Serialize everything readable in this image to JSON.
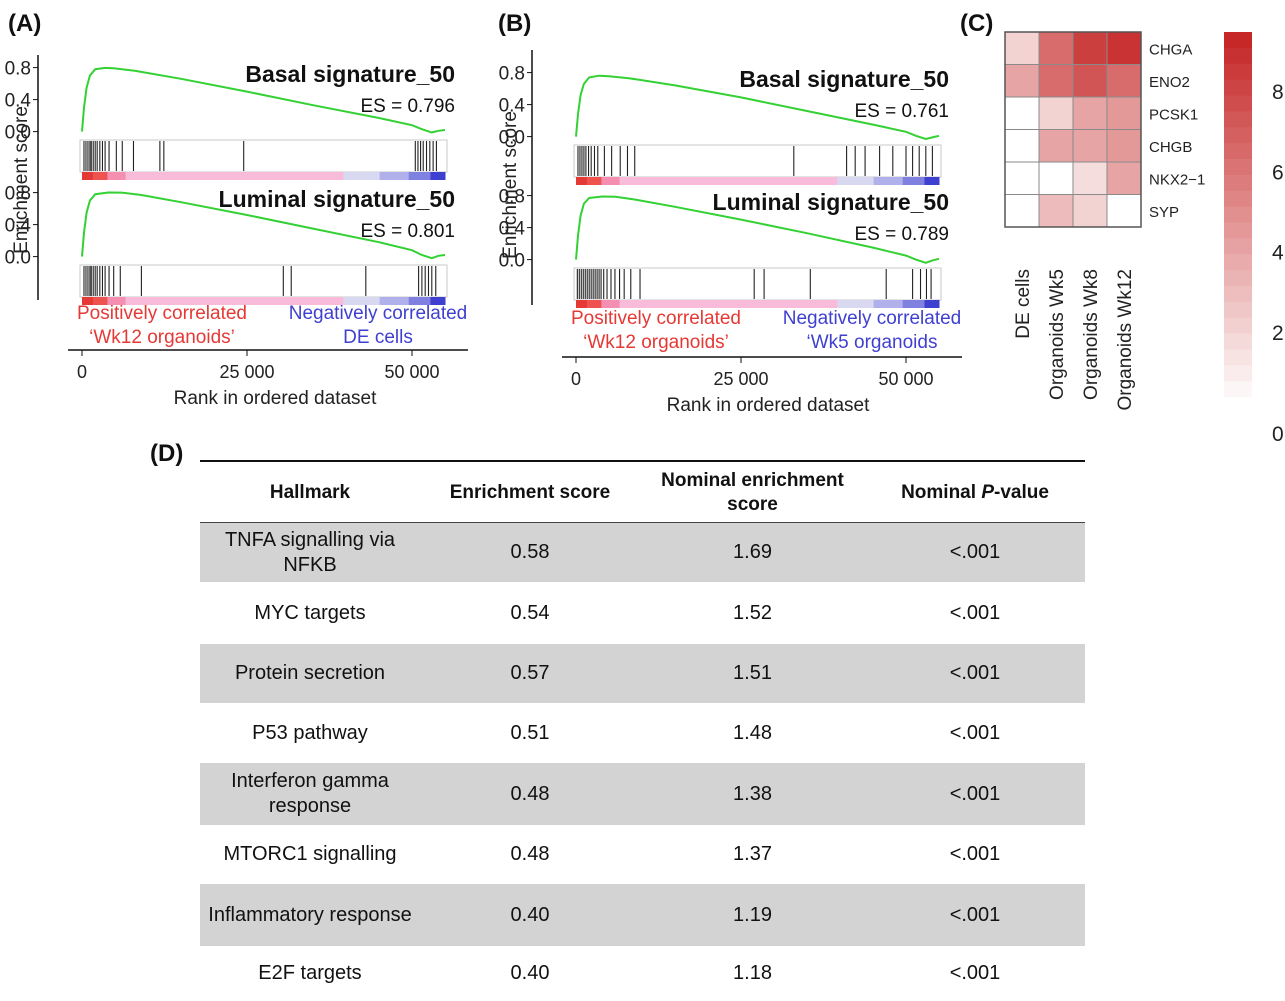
{
  "panel_labels": {
    "a": "(A)",
    "b": "(B)",
    "c": "(C)",
    "d": "(D)"
  },
  "chart_data": [
    {
      "type": "line",
      "panel": "(A)",
      "ylabel": "Enrichment score",
      "xlabel": "Rank in ordered dataset",
      "x_ticks": [
        "0",
        "25 000",
        "50 000"
      ],
      "x_tick_values": [
        0,
        25000,
        50000
      ],
      "xlim": [
        0,
        55000
      ],
      "y_ticks": [
        "0.8",
        "0.4",
        "0.0"
      ],
      "y_tick_values": [
        0.8,
        0.4,
        0.0
      ],
      "ylim": [
        -0.08,
        0.92
      ],
      "pos_label": [
        "Positively correlated",
        "‘Wk12 organoids’"
      ],
      "neg_label": [
        "Negatively correlated",
        "DE cells"
      ],
      "pos_color": "#e53935",
      "neg_color": "#3f3fd0",
      "curve_color": "#33d133",
      "series": [
        {
          "name": "Basal signature_50",
          "es_label": "ES = 0.796",
          "es": 0.796,
          "curve": [
            [
              0,
              0
            ],
            [
              300,
              0.3
            ],
            [
              700,
              0.55
            ],
            [
              1200,
              0.7
            ],
            [
              2000,
              0.78
            ],
            [
              3500,
              0.796
            ],
            [
              5000,
              0.79
            ],
            [
              8000,
              0.76
            ],
            [
              15000,
              0.66
            ],
            [
              25000,
              0.5
            ],
            [
              35000,
              0.33
            ],
            [
              45000,
              0.17
            ],
            [
              50000,
              0.08
            ],
            [
              51500,
              0.03
            ],
            [
              53000,
              -0.01
            ],
            [
              54000,
              0.01
            ],
            [
              55000,
              0.02
            ]
          ],
          "hits": [
            300,
            600,
            900,
            1200,
            1400,
            1700,
            2000,
            2300,
            2700,
            3100,
            3500,
            4100,
            5200,
            6100,
            7800,
            11800,
            12400,
            24500,
            50500,
            50900,
            51300,
            51700,
            52200,
            52700,
            53200,
            53700
          ]
        },
        {
          "name": "Luminal signature_50",
          "es_label": "ES = 0.801",
          "es": 0.801,
          "curve": [
            [
              0,
              0
            ],
            [
              300,
              0.3
            ],
            [
              700,
              0.55
            ],
            [
              1200,
              0.7
            ],
            [
              2000,
              0.78
            ],
            [
              4000,
              0.801
            ],
            [
              6000,
              0.8
            ],
            [
              9000,
              0.77
            ],
            [
              15000,
              0.68
            ],
            [
              25000,
              0.52
            ],
            [
              35000,
              0.35
            ],
            [
              45000,
              0.18
            ],
            [
              50000,
              0.08
            ],
            [
              51500,
              0.02
            ],
            [
              53000,
              -0.02
            ],
            [
              54000,
              0.01
            ],
            [
              55000,
              0.02
            ]
          ],
          "hits": [
            300,
            600,
            900,
            1200,
            1400,
            1700,
            2000,
            2300,
            2700,
            3100,
            3500,
            4100,
            4800,
            5800,
            9000,
            30500,
            31700,
            43000,
            51000,
            51500,
            52000,
            52500,
            53000,
            53600
          ]
        }
      ]
    },
    {
      "type": "line",
      "panel": "(B)",
      "ylabel": "Enrichment score",
      "xlabel": "Rank in ordered dataset",
      "x_ticks": [
        "0",
        "25 000",
        "50 000"
      ],
      "x_tick_values": [
        0,
        25000,
        50000
      ],
      "xlim": [
        0,
        55000
      ],
      "y_ticks": [
        "0.8",
        "0.4",
        "0.0"
      ],
      "y_tick_values": [
        0.8,
        0.4,
        0.0
      ],
      "ylim": [
        -0.08,
        0.92
      ],
      "pos_label": [
        "Positively correlated",
        "‘Wk12 organoids’"
      ],
      "neg_label": [
        "Negatively correlated",
        "‘Wk5 organoids"
      ],
      "pos_color": "#e53935",
      "neg_color": "#3f3fd0",
      "curve_color": "#33d133",
      "series": [
        {
          "name": "Basal signature_50",
          "es_label": "ES = 0.761",
          "es": 0.761,
          "curve": [
            [
              0,
              0
            ],
            [
              300,
              0.28
            ],
            [
              700,
              0.52
            ],
            [
              1200,
              0.66
            ],
            [
              2000,
              0.74
            ],
            [
              3500,
              0.761
            ],
            [
              5000,
              0.755
            ],
            [
              8000,
              0.73
            ],
            [
              15000,
              0.64
            ],
            [
              25000,
              0.49
            ],
            [
              35000,
              0.32
            ],
            [
              45000,
              0.15
            ],
            [
              50000,
              0.06
            ],
            [
              51500,
              0.01
            ],
            [
              53000,
              -0.03
            ],
            [
              54000,
              -0.01
            ],
            [
              55000,
              0.01
            ]
          ],
          "hits": [
            300,
            600,
            900,
            1200,
            1500,
            1900,
            2300,
            2800,
            3300,
            4300,
            5400,
            6700,
            7800,
            8900,
            33000,
            41000,
            42300,
            43800,
            46000,
            48000,
            50000,
            51000,
            52000,
            53000,
            54000
          ]
        },
        {
          "name": "Luminal signature_50",
          "es_label": "ES = 0.789",
          "es": 0.789,
          "curve": [
            [
              0,
              0
            ],
            [
              300,
              0.3
            ],
            [
              700,
              0.55
            ],
            [
              1200,
              0.7
            ],
            [
              2000,
              0.77
            ],
            [
              4000,
              0.789
            ],
            [
              6000,
              0.785
            ],
            [
              9000,
              0.75
            ],
            [
              15000,
              0.66
            ],
            [
              25000,
              0.5
            ],
            [
              35000,
              0.33
            ],
            [
              45000,
              0.15
            ],
            [
              50000,
              0.05
            ],
            [
              51500,
              0.0
            ],
            [
              53000,
              -0.04
            ],
            [
              54000,
              -0.01
            ],
            [
              55000,
              0.01
            ]
          ],
          "hits": [
            200,
            500,
            800,
            1100,
            1400,
            1700,
            2000,
            2300,
            2600,
            2900,
            3200,
            3500,
            3800,
            4200,
            4700,
            5300,
            5900,
            6600,
            7300,
            8300,
            9700,
            27000,
            28500,
            35500,
            47000,
            51000,
            52200,
            53100,
            53800
          ]
        }
      ]
    },
    {
      "type": "heatmap",
      "panel": "(C)",
      "rows": [
        "CHGA",
        "ENO2",
        "PCSK1",
        "CHGB",
        "NKX2−1",
        "SYP"
      ],
      "columns": [
        "DE cells",
        "Organoids Wk5",
        "Organoids Wk8",
        "Organoids Wk12"
      ],
      "values": [
        [
          2,
          6.5,
          8.5,
          9
        ],
        [
          4,
          6.5,
          7.5,
          6.5
        ],
        [
          0,
          2,
          4,
          4.5
        ],
        [
          0,
          4,
          4,
          4.5
        ],
        [
          0,
          0,
          1.5,
          4
        ],
        [
          0,
          3,
          2,
          0
        ]
      ],
      "colorbar_ticks": [
        "8",
        "6",
        "4",
        "2",
        "0"
      ],
      "colorbar_tick_values": [
        8,
        6,
        4,
        2,
        0
      ],
      "range": [
        0,
        9.5
      ],
      "low_color": "#ffffff",
      "high_color": "#c62828"
    },
    {
      "type": "table",
      "panel": "(D)",
      "columns": [
        "Hallmark",
        "Enrichment score",
        "Nominal enrichment score",
        "Nominal P-value"
      ],
      "rows": [
        [
          "TNFA signalling via NFKB",
          "0.58",
          "1.69",
          "<.001"
        ],
        [
          "MYC targets",
          "0.54",
          "1.52",
          "<.001"
        ],
        [
          "Protein secretion",
          "0.57",
          "1.51",
          "<.001"
        ],
        [
          "P53 pathway",
          "0.51",
          "1.48",
          "<.001"
        ],
        [
          "Interferon gamma response",
          "0.48",
          "1.38",
          "<.001"
        ],
        [
          "MTORC1 signalling",
          "0.48",
          "1.37",
          "<.001"
        ],
        [
          "Inflammatory response",
          "0.40",
          "1.19",
          "<.001"
        ],
        [
          "E2F targets",
          "0.40",
          "1.18",
          "<.001"
        ]
      ]
    }
  ],
  "table": {
    "headers": {
      "hallmark": "Hallmark",
      "es": "Enrichment score",
      "nes_line1": "Nominal enrichment",
      "nes_line2": "score",
      "p_prefix": "Nominal ",
      "p_italic": "P",
      "p_suffix": "-value"
    },
    "row_line_breaks": {
      "0": [
        "TNFA signalling via",
        "NFKB"
      ],
      "4": [
        "Interferon gamma",
        "response"
      ]
    },
    "row_shading_color": "#d3d3d3"
  }
}
